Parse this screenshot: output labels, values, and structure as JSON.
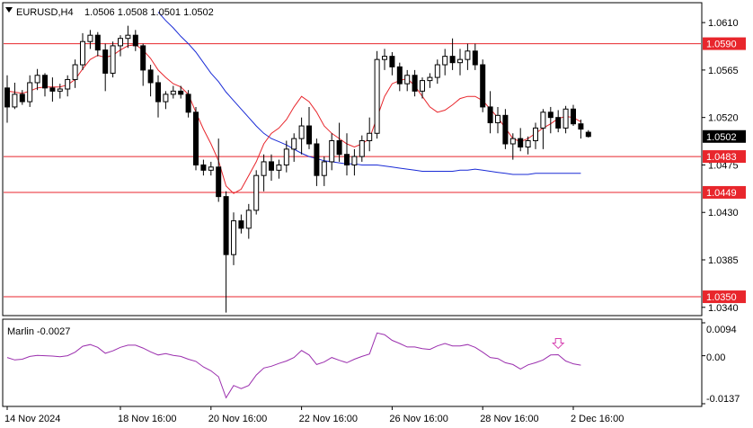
{
  "header": {
    "symbol": "EURUSD,H4",
    "ohlc": "1.0506 1.0508 1.0501 1.0502"
  },
  "indicator": {
    "name_value": "Marlin -0.0027",
    "axis": [
      "0.0094",
      "0.00",
      "-0.0137"
    ]
  },
  "colors": {
    "bull": "#ffffff",
    "bear": "#000000",
    "ma_fast": "#e8262c",
    "ma_slow": "#1a2bd6",
    "level": "#e8262c",
    "oscillator": "#9b2fae",
    "marker": "#d640b0",
    "current_price_box": "#000000"
  },
  "chart_data": {
    "type": "candlestick",
    "ylim": [
      1.0333,
      1.0628
    ],
    "y_ticks": [
      "1.0610",
      "1.0565",
      "1.0520",
      "1.0475",
      "1.0430",
      "1.0385",
      "1.0340"
    ],
    "price_axis_tags": [
      {
        "text": "1.0590",
        "price": 1.059,
        "kind": "level"
      },
      {
        "text": "1.0502",
        "price": 1.0502,
        "kind": "current"
      },
      {
        "text": "1.0483",
        "price": 1.0483,
        "kind": "level"
      },
      {
        "text": "1.0449",
        "price": 1.0449,
        "kind": "level"
      },
      {
        "text": "1.0350",
        "price": 1.035,
        "kind": "level"
      }
    ],
    "levels": [
      1.059,
      1.0483,
      1.0449,
      1.035
    ],
    "x_labels": [
      {
        "text": "14 Nov 2024",
        "bar": 0
      },
      {
        "text": "18 Nov 16:00",
        "bar": 15
      },
      {
        "text": "20 Nov 16:00",
        "bar": 27
      },
      {
        "text": "22 Nov 16:00",
        "bar": 39
      },
      {
        "text": "26 Nov 16:00",
        "bar": 51
      },
      {
        "text": "28 Nov 16:00",
        "bar": 63
      },
      {
        "text": "2 Dec 16:00",
        "bar": 75
      }
    ],
    "candles": [
      [
        1.0548,
        1.056,
        1.0515,
        1.053
      ],
      [
        1.053,
        1.0553,
        1.0528,
        1.0542
      ],
      [
        1.0542,
        1.0546,
        1.0532,
        1.0535
      ],
      [
        1.0535,
        1.056,
        1.053,
        1.0553
      ],
      [
        1.0553,
        1.0566,
        1.0546,
        1.056
      ],
      [
        1.056,
        1.0562,
        1.054,
        1.0548
      ],
      [
        1.0548,
        1.0558,
        1.0535,
        1.0545
      ],
      [
        1.0545,
        1.0552,
        1.0538,
        1.0547
      ],
      [
        1.0547,
        1.056,
        1.054,
        1.0556
      ],
      [
        1.0556,
        1.0575,
        1.0548,
        1.057
      ],
      [
        1.057,
        1.06,
        1.0565,
        1.0592
      ],
      [
        1.0592,
        1.0603,
        1.0585,
        1.0598
      ],
      [
        1.0598,
        1.0601,
        1.0578,
        1.0584
      ],
      [
        1.0584,
        1.059,
        1.0545,
        1.0562
      ],
      [
        1.0562,
        1.0592,
        1.0558,
        1.0588
      ],
      [
        1.0588,
        1.0598,
        1.0578,
        1.0595
      ],
      [
        1.0595,
        1.0607,
        1.0586,
        1.0598
      ],
      [
        1.0598,
        1.0603,
        1.0583,
        1.0588
      ],
      [
        1.0588,
        1.059,
        1.055,
        1.0565
      ],
      [
        1.0565,
        1.057,
        1.054,
        1.0553
      ],
      [
        1.0553,
        1.056,
        1.052,
        1.0535
      ],
      [
        1.0535,
        1.0545,
        1.0528,
        1.0542
      ],
      [
        1.0542,
        1.055,
        1.0538,
        1.0545
      ],
      [
        1.0545,
        1.055,
        1.0538,
        1.0542
      ],
      [
        1.0542,
        1.0546,
        1.052,
        1.0525
      ],
      [
        1.0525,
        1.053,
        1.047,
        1.0475
      ],
      [
        1.0475,
        1.048,
        1.0465,
        1.047
      ],
      [
        1.047,
        1.0478,
        1.0465,
        1.0473
      ],
      [
        1.0473,
        1.05,
        1.044,
        1.0445
      ],
      [
        1.0445,
        1.045,
        1.0335,
        1.039
      ],
      [
        1.039,
        1.043,
        1.038,
        1.0422
      ],
      [
        1.0422,
        1.0428,
        1.041,
        1.0415
      ],
      [
        1.0415,
        1.0438,
        1.0405,
        1.0432
      ],
      [
        1.0432,
        1.047,
        1.0428,
        1.0465
      ],
      [
        1.0465,
        1.0485,
        1.045,
        1.0478
      ],
      [
        1.0478,
        1.0485,
        1.046,
        1.047
      ],
      [
        1.047,
        1.048,
        1.0462,
        1.0475
      ],
      [
        1.0475,
        1.0498,
        1.0468,
        1.049
      ],
      [
        1.049,
        1.0505,
        1.0478,
        1.05
      ],
      [
        1.05,
        1.052,
        1.0485,
        1.0512
      ],
      [
        1.0512,
        1.053,
        1.049,
        1.0495
      ],
      [
        1.0495,
        1.05,
        1.0455,
        1.0465
      ],
      [
        1.0465,
        1.0483,
        1.0455,
        1.0478
      ],
      [
        1.0478,
        1.0505,
        1.047,
        1.0498
      ],
      [
        1.0498,
        1.0515,
        1.0478,
        1.0485
      ],
      [
        1.0485,
        1.0505,
        1.0465,
        1.0475
      ],
      [
        1.0475,
        1.049,
        1.0465,
        1.0483
      ],
      [
        1.0483,
        1.0503,
        1.0478,
        1.0498
      ],
      [
        1.0498,
        1.052,
        1.0488,
        1.0505
      ],
      [
        1.0505,
        1.0583,
        1.05,
        1.0575
      ],
      [
        1.0575,
        1.0585,
        1.0565,
        1.0578
      ],
      [
        1.0578,
        1.0582,
        1.056,
        1.0568
      ],
      [
        1.0568,
        1.0572,
        1.0545,
        1.0552
      ],
      [
        1.0552,
        1.0565,
        1.0545,
        1.056
      ],
      [
        1.056,
        1.0565,
        1.054,
        1.0545
      ],
      [
        1.0545,
        1.0558,
        1.0538,
        1.0555
      ],
      [
        1.0555,
        1.0562,
        1.0548,
        1.0558
      ],
      [
        1.0558,
        1.0575,
        1.0552,
        1.057
      ],
      [
        1.057,
        1.0585,
        1.056,
        1.0578
      ],
      [
        1.0578,
        1.0595,
        1.0565,
        1.0572
      ],
      [
        1.0572,
        1.0585,
        1.056,
        1.0575
      ],
      [
        1.0575,
        1.059,
        1.0565,
        1.0583
      ],
      [
        1.0583,
        1.059,
        1.0565,
        1.057
      ],
      [
        1.057,
        1.0575,
        1.0525,
        1.053
      ],
      [
        1.053,
        1.0545,
        1.0505,
        1.0515
      ],
      [
        1.0515,
        1.053,
        1.0505,
        1.0522
      ],
      [
        1.0522,
        1.0528,
        1.049,
        1.0495
      ],
      [
        1.0495,
        1.0505,
        1.048,
        1.05
      ],
      [
        1.05,
        1.051,
        1.0488,
        1.0492
      ],
      [
        1.0492,
        1.0502,
        1.0485,
        1.0498
      ],
      [
        1.0498,
        1.0515,
        1.049,
        1.051
      ],
      [
        1.051,
        1.0528,
        1.049,
        1.0525
      ],
      [
        1.0525,
        1.053,
        1.0505,
        1.052
      ],
      [
        1.052,
        1.0527,
        1.0506,
        1.051
      ],
      [
        1.051,
        1.0531,
        1.0505,
        1.0528
      ],
      [
        1.0528,
        1.0532,
        1.0512,
        1.0514
      ],
      [
        1.0514,
        1.0518,
        1.05,
        1.0509
      ],
      [
        1.0506,
        1.0508,
        1.0501,
        1.0502
      ]
    ],
    "ma_fast": [
      1.0545,
      1.0544,
      1.0543,
      1.0545,
      1.0548,
      1.0549,
      1.0549,
      1.0549,
      1.0551,
      1.0556,
      1.0566,
      1.0575,
      1.0579,
      1.0577,
      1.0579,
      1.0584,
      1.0588,
      1.0589,
      1.0584,
      1.0576,
      1.0565,
      1.0558,
      1.0552,
      1.0549,
      1.0542,
      1.0525,
      1.0509,
      1.0495,
      1.0479,
      1.0455,
      1.0448,
      1.0452,
      1.0465,
      1.0478,
      1.0495,
      1.0505,
      1.051,
      1.0518,
      1.053,
      1.054,
      1.0535,
      1.0525,
      1.0512,
      1.0505,
      1.05,
      1.0495,
      1.0492,
      1.0495,
      1.05,
      1.052,
      1.054,
      1.0552,
      1.0555,
      1.0557,
      1.055,
      1.054,
      1.053,
      1.0525,
      1.0527,
      1.0532,
      1.0538,
      1.054,
      1.054,
      1.0536,
      1.0528,
      1.052,
      1.051,
      1.05,
      1.0497,
      1.05,
      1.0505,
      1.051,
      1.0514,
      1.0519,
      1.0521,
      1.052,
      1.0516
    ],
    "ma_slow": [
      null,
      null,
      null,
      null,
      null,
      null,
      null,
      null,
      null,
      null,
      null,
      null,
      null,
      null,
      null,
      null,
      null,
      null,
      null,
      null,
      1.062,
      1.0612,
      1.0605,
      1.0597,
      1.059,
      1.0582,
      1.0572,
      1.0562,
      1.0554,
      1.0544,
      1.0536,
      1.0528,
      1.052,
      1.0512,
      1.0505,
      1.05,
      1.0497,
      1.0494,
      1.049,
      1.0486,
      1.0483,
      1.0481,
      1.0479,
      1.0478,
      1.0477,
      1.0476,
      1.0476,
      1.0475,
      1.0475,
      1.0475,
      1.0474,
      1.0473,
      1.0472,
      1.0471,
      1.047,
      1.0469,
      1.0469,
      1.0469,
      1.0469,
      1.0469,
      1.047,
      1.047,
      1.0471,
      1.047,
      1.0469,
      1.0468,
      1.0467,
      1.0466,
      1.0466,
      1.0466,
      1.0467,
      1.0467,
      1.0467,
      1.0467,
      1.0467,
      1.0467,
      1.0467
    ],
    "oscillator": {
      "ylim": [
        -0.0137,
        0.0094
      ],
      "values": [
        -0.0005,
        -0.0012,
        -0.001,
        -0.0002,
        0.0001,
        0.0,
        -0.0001,
        -0.0003,
        0.0,
        0.001,
        0.0027,
        0.0032,
        0.0024,
        0.0007,
        0.0014,
        0.0024,
        0.003,
        0.003,
        0.0022,
        0.0011,
        0.0002,
        0.0006,
        0.0001,
        -0.0002,
        -0.001,
        -0.0016,
        -0.0032,
        -0.0043,
        -0.006,
        -0.012,
        -0.0085,
        -0.0094,
        -0.0085,
        -0.0055,
        -0.0035,
        -0.003,
        -0.0022,
        -0.0015,
        -0.0005,
        0.0015,
        0.0002,
        -0.0025,
        -0.0018,
        -0.0005,
        -0.0013,
        -0.002,
        -0.001,
        -0.0002,
        0.0005,
        0.0065,
        0.006,
        0.0044,
        0.0035,
        0.0025,
        0.0025,
        0.002,
        0.0018,
        0.0028,
        0.0035,
        0.0028,
        0.0028,
        0.0032,
        0.0024,
        0.001,
        -0.0005,
        -0.0008,
        -0.002,
        -0.0025,
        -0.0038,
        -0.0026,
        -0.002,
        -0.0012,
        0.0002,
        0.0003,
        -0.0015,
        -0.0023,
        -0.0027
      ],
      "marker_bar": 73
    }
  }
}
